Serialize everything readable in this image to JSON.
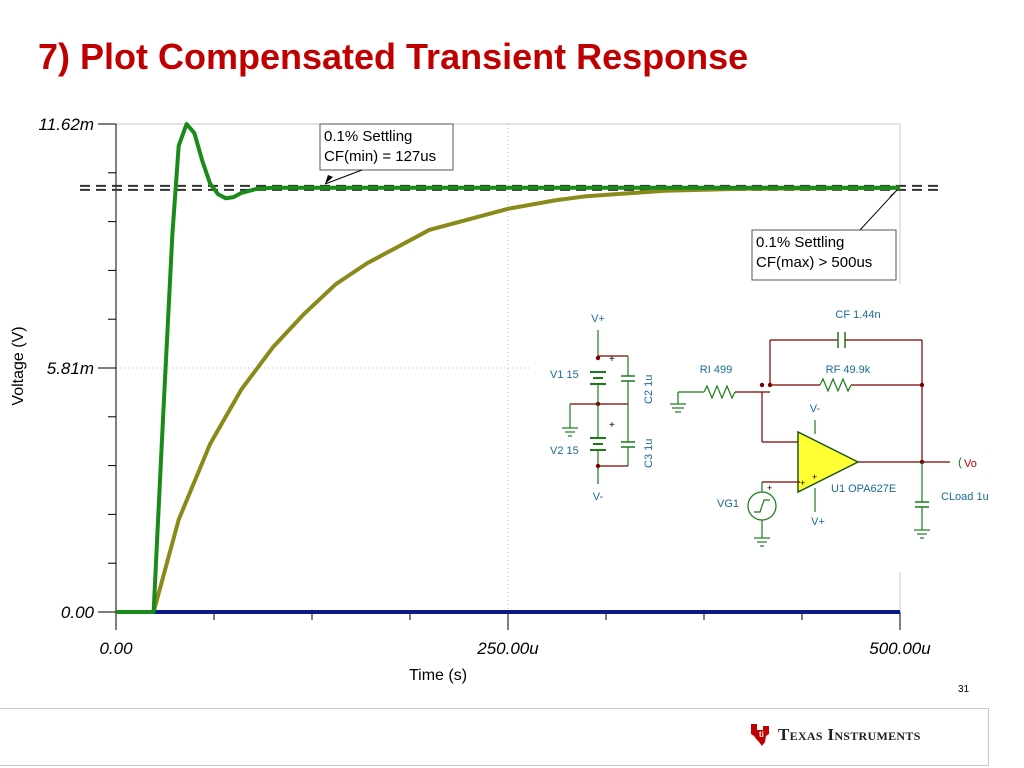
{
  "slide": {
    "title": "7) Plot Compensated Transient Response",
    "page_number": "31"
  },
  "chart_data": {
    "type": "line",
    "xlabel": "Time (s)",
    "ylabel": "Voltage (V)",
    "xlim": [
      0,
      0.0005
    ],
    "ylim": [
      0,
      0.01162
    ],
    "x_tick_labels": [
      "0.00",
      "250.00u",
      "500.00u"
    ],
    "y_tick_labels": [
      "0.00",
      "5.81m",
      "11.62m"
    ],
    "grid": true,
    "x_ticks": [
      0,
      0.00025,
      0.0005
    ],
    "y_ticks": [
      0,
      0.00581,
      0.01162
    ],
    "reference_level": 0.0101,
    "series": [
      {
        "color": "#1a8a1a",
        "x": [
          0,
          2.4e-05,
          3e-05,
          3.6e-05,
          4e-05,
          4.5e-05,
          5e-05,
          5.5e-05,
          6e-05,
          6.5e-05,
          7e-05,
          7.5e-05,
          8e-05,
          9e-05,
          0.0001,
          0.00011,
          0.00012,
          0.00014,
          0.0002,
          0.0003,
          0.0004,
          0.0005
        ],
        "y": [
          0,
          0,
          0.0046,
          0.009,
          0.0111,
          0.01162,
          0.0114,
          0.01075,
          0.0102,
          0.00995,
          0.00985,
          0.00988,
          0.00998,
          0.01008,
          0.0101,
          0.0101,
          0.0101,
          0.0101,
          0.0101,
          0.0101,
          0.0101,
          0.0101
        ]
      },
      {
        "color": "#8a8a1a",
        "x": [
          0,
          2.4e-05,
          4e-05,
          6e-05,
          8e-05,
          0.0001,
          0.00012,
          0.00014,
          0.00016,
          0.00018,
          0.0002,
          0.00022,
          0.00025,
          0.00028,
          0.0003,
          0.00035,
          0.0004,
          0.00045,
          0.0005
        ],
        "y": [
          0,
          0,
          0.0022,
          0.004,
          0.0053,
          0.0063,
          0.0071,
          0.0078,
          0.0083,
          0.0087,
          0.0091,
          0.0093,
          0.0096,
          0.0098,
          0.0099,
          0.01003,
          0.01008,
          0.01009,
          0.0101
        ]
      },
      {
        "color": "#0a1a8a",
        "x": [
          0,
          0.0005
        ],
        "y": [
          0,
          0
        ]
      }
    ],
    "annotations": [
      {
        "lines": [
          "0.1% Settling",
          "CF(min) = 127us"
        ]
      },
      {
        "lines": [
          "0.1% Settling",
          "CF(max) > 500us"
        ]
      }
    ],
    "schematic": {
      "labels": {
        "vplus_top": "V+",
        "v1": "V1 15",
        "c2": "C2 1u",
        "v2": "V2 15",
        "c3": "C3 1u",
        "vminus_bottom": "V-",
        "cf": "CF 1.44n",
        "ri": "RI 499",
        "rf": "RF 49.9k",
        "vminus_op": "V-",
        "u1": "U1 OPA627E",
        "vo": "Vo",
        "vg1": "VG1",
        "cload": "CLoad 1u",
        "vplus_op": "V+",
        "plus_sign": "+"
      },
      "colors": {
        "component": "#1a7a1a",
        "wire": "#7a0000",
        "label": "#1a6a9a",
        "opamp_fill": "#ffff33"
      }
    }
  },
  "footer": {
    "logo_text": "Texas Instruments",
    "logo_color": "#c00000"
  }
}
